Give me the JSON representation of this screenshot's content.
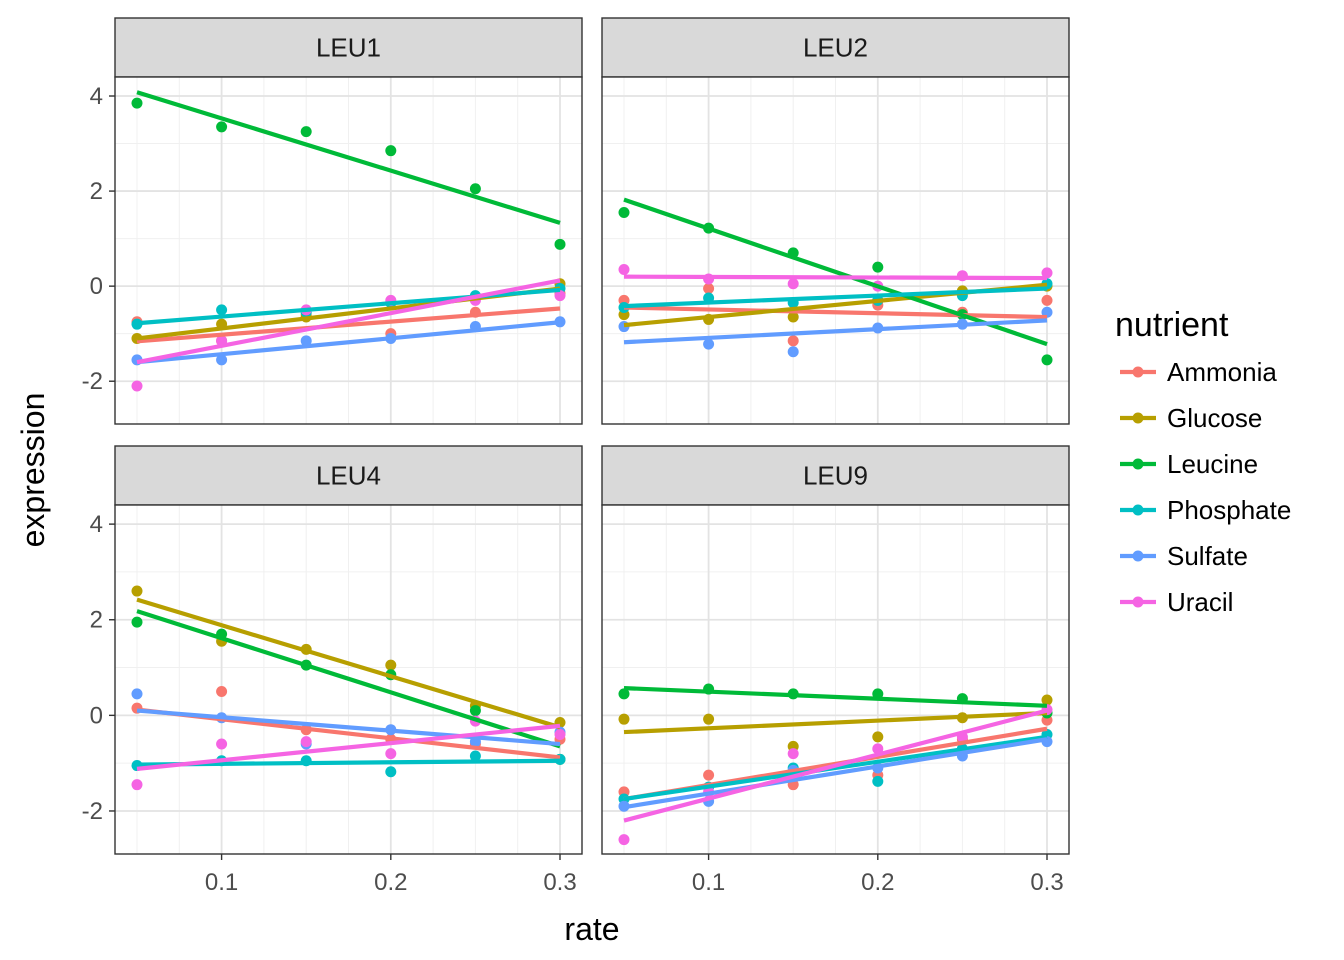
{
  "chart_data": {
    "type": "scatter",
    "subtype": "faceted scatter with linear fit lines",
    "xlabel": "rate",
    "ylabel": "expression",
    "xlim": [
      0.037,
      0.313
    ],
    "ylim": [
      -2.9,
      4.4
    ],
    "x_ticks": [
      0.1,
      0.2,
      0.3
    ],
    "y_ticks": [
      -2,
      0,
      2,
      4
    ],
    "x_tick_labels": [
      "0.1",
      "0.2",
      "0.3"
    ],
    "y_tick_labels": [
      "-2",
      "0",
      "2",
      "4"
    ],
    "x": [
      0.05,
      0.1,
      0.15,
      0.2,
      0.25,
      0.3
    ],
    "grid": true,
    "legend": {
      "title": "nutrient",
      "placement": "right",
      "entries": [
        "Ammonia",
        "Glucose",
        "Leucine",
        "Phosphate",
        "Sulfate",
        "Uracil"
      ]
    },
    "colors": {
      "Ammonia": "#F8766D",
      "Glucose": "#B79F00",
      "Leucine": "#00BA38",
      "Phosphate": "#00BFC4",
      "Sulfate": "#619CFF",
      "Uracil": "#F564E3"
    },
    "facets": [
      {
        "name": "LEU1",
        "series": [
          {
            "name": "Ammonia",
            "values": [
              -0.75,
              -1.15,
              -0.6,
              -1.0,
              -0.55,
              -0.15
            ],
            "fit": [
              -1.16,
              -0.47
            ]
          },
          {
            "name": "Glucose",
            "values": [
              -1.1,
              -0.8,
              -0.65,
              -0.35,
              -0.25,
              0.05
            ],
            "fit": [
              -1.1,
              -0.05
            ]
          },
          {
            "name": "Leucine",
            "values": [
              3.85,
              3.35,
              3.25,
              2.85,
              2.05,
              0.88
            ],
            "fit": [
              4.08,
              1.33
            ]
          },
          {
            "name": "Phosphate",
            "values": [
              -0.8,
              -0.5,
              -0.55,
              -0.35,
              -0.2,
              -0.05
            ],
            "fit": [
              -0.78,
              -0.08
            ]
          },
          {
            "name": "Sulfate",
            "values": [
              -1.55,
              -1.55,
              -1.15,
              -1.1,
              -0.85,
              -0.75
            ],
            "fit": [
              -1.6,
              -0.76
            ]
          },
          {
            "name": "Uracil",
            "values": [
              -2.1,
              -1.15,
              -0.5,
              -0.3,
              -0.3,
              -0.2
            ],
            "fit": [
              -1.6,
              0.12
            ]
          }
        ]
      },
      {
        "name": "LEU2",
        "series": [
          {
            "name": "Ammonia",
            "values": [
              -0.3,
              -0.05,
              -1.15,
              -0.4,
              -0.55,
              -0.3
            ],
            "fit": [
              -0.45,
              -0.65
            ]
          },
          {
            "name": "Glucose",
            "values": [
              -0.6,
              -0.7,
              -0.65,
              -0.3,
              -0.1,
              0.0
            ],
            "fit": [
              -0.82,
              0.03
            ]
          },
          {
            "name": "Leucine",
            "values": [
              1.55,
              1.22,
              0.7,
              0.4,
              -0.6,
              -1.55
            ],
            "fit": [
              1.82,
              -1.22
            ]
          },
          {
            "name": "Phosphate",
            "values": [
              -0.45,
              -0.25,
              -0.35,
              -0.3,
              -0.2,
              0.05
            ],
            "fit": [
              -0.42,
              -0.05
            ]
          },
          {
            "name": "Sulfate",
            "values": [
              -0.85,
              -1.22,
              -1.38,
              -0.88,
              -0.8,
              -0.55
            ],
            "fit": [
              -1.18,
              -0.72
            ]
          },
          {
            "name": "Uracil",
            "values": [
              0.35,
              0.15,
              0.05,
              0.0,
              0.22,
              0.28
            ],
            "fit": [
              0.2,
              0.17
            ]
          }
        ]
      },
      {
        "name": "LEU4",
        "series": [
          {
            "name": "Ammonia",
            "values": [
              0.15,
              0.5,
              -0.3,
              -0.5,
              -0.6,
              -0.5
            ],
            "fit": [
              0.12,
              -0.88
            ]
          },
          {
            "name": "Glucose",
            "values": [
              2.6,
              1.55,
              1.38,
              1.05,
              0.2,
              -0.15
            ],
            "fit": [
              2.42,
              -0.25
            ]
          },
          {
            "name": "Leucine",
            "values": [
              1.95,
              1.7,
              1.05,
              0.85,
              0.1,
              -0.92
            ],
            "fit": [
              2.18,
              -0.65
            ]
          },
          {
            "name": "Phosphate",
            "values": [
              -1.05,
              -0.95,
              -0.95,
              -1.18,
              -0.85,
              -0.92
            ],
            "fit": [
              -1.03,
              -0.95
            ]
          },
          {
            "name": "Sulfate",
            "values": [
              0.45,
              -0.05,
              -0.6,
              -0.3,
              -0.55,
              -0.35
            ],
            "fit": [
              0.1,
              -0.6
            ]
          },
          {
            "name": "Uracil",
            "values": [
              -1.45,
              -0.6,
              -0.55,
              -0.8,
              -0.12,
              -0.4
            ],
            "fit": [
              -1.12,
              -0.22
            ]
          }
        ]
      },
      {
        "name": "LEU9",
        "series": [
          {
            "name": "Ammonia",
            "values": [
              -1.6,
              -1.25,
              -1.45,
              -1.25,
              -0.5,
              -0.1
            ],
            "fit": [
              -1.75,
              -0.28
            ]
          },
          {
            "name": "Glucose",
            "values": [
              -0.08,
              -0.08,
              -0.65,
              -0.45,
              -0.05,
              0.32
            ],
            "fit": [
              -0.35,
              0.05
            ]
          },
          {
            "name": "Leucine",
            "values": [
              0.45,
              0.55,
              0.45,
              0.45,
              0.35,
              0.05
            ],
            "fit": [
              0.57,
              0.2
            ]
          },
          {
            "name": "Phosphate",
            "values": [
              -1.75,
              -1.5,
              -1.1,
              -1.38,
              -0.7,
              -0.4
            ],
            "fit": [
              -1.75,
              -0.45
            ]
          },
          {
            "name": "Sulfate",
            "values": [
              -1.9,
              -1.8,
              -1.15,
              -1.1,
              -0.85,
              -0.55
            ],
            "fit": [
              -1.92,
              -0.5
            ]
          },
          {
            "name": "Uracil",
            "values": [
              -2.6,
              -1.6,
              -0.8,
              -0.7,
              -0.45,
              0.12
            ],
            "fit": [
              -2.2,
              0.1
            ]
          }
        ]
      }
    ]
  }
}
